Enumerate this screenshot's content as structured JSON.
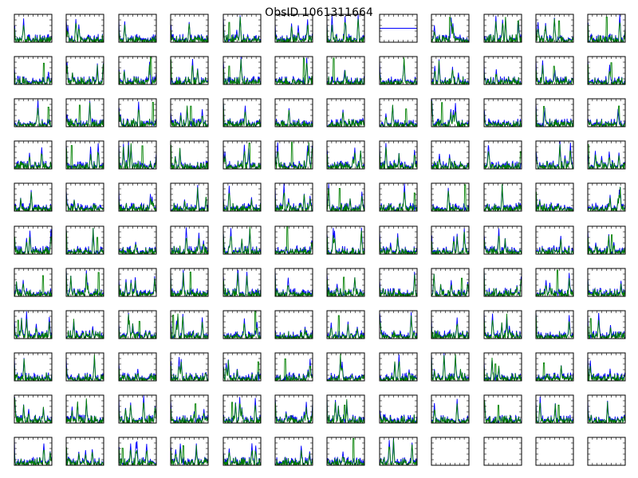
{
  "figure": {
    "title": "ObsID 1061311664"
  },
  "chart_data": {
    "type": "line",
    "title": "ObsID 1061311664",
    "grid": {
      "rows": 11,
      "cols": 12
    },
    "panel_count": 132,
    "populated_panels": 128,
    "empty_panels": [
      128,
      129,
      130,
      131
    ],
    "flat_panels": [
      7
    ],
    "axis_ticks": false,
    "xlabel": "",
    "ylabel": "",
    "series": [
      {
        "id": "blue",
        "color": "#0000ff"
      },
      {
        "id": "green",
        "color": "#008000"
      }
    ],
    "colors": {
      "series_1": "#0000ff",
      "series_2": "#008000",
      "axes": "#000000",
      "background": "#ffffff"
    }
  }
}
